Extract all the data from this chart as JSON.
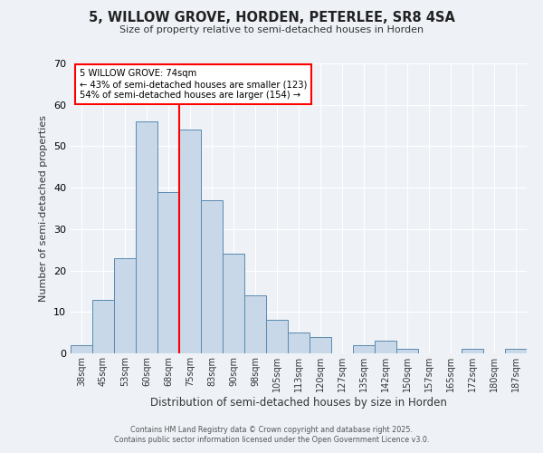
{
  "title": "5, WILLOW GROVE, HORDEN, PETERLEE, SR8 4SA",
  "subtitle": "Size of property relative to semi-detached houses in Horden",
  "xlabel": "Distribution of semi-detached houses by size in Horden",
  "ylabel": "Number of semi-detached properties",
  "bar_labels": [
    "38sqm",
    "45sqm",
    "53sqm",
    "60sqm",
    "68sqm",
    "75sqm",
    "83sqm",
    "90sqm",
    "98sqm",
    "105sqm",
    "113sqm",
    "120sqm",
    "127sqm",
    "135sqm",
    "142sqm",
    "150sqm",
    "157sqm",
    "165sqm",
    "172sqm",
    "180sqm",
    "187sqm"
  ],
  "bar_values": [
    2,
    13,
    23,
    56,
    39,
    54,
    37,
    24,
    14,
    8,
    5,
    4,
    0,
    2,
    3,
    1,
    0,
    0,
    1,
    0,
    1
  ],
  "bar_color": "#c8d8e8",
  "bar_edge_color": "#5a8ab0",
  "vline_index": 5,
  "vline_color": "red",
  "annotation_title": "5 WILLOW GROVE: 74sqm",
  "annotation_line1": "← 43% of semi-detached houses are smaller (123)",
  "annotation_line2": "54% of semi-detached houses are larger (154) →",
  "annotation_box_color": "white",
  "annotation_box_edge": "red",
  "ylim": [
    0,
    70
  ],
  "yticks": [
    0,
    10,
    20,
    30,
    40,
    50,
    60,
    70
  ],
  "bg_color": "#eef2f7",
  "grid_color": "white",
  "footer1": "Contains HM Land Registry data © Crown copyright and database right 2025.",
  "footer2": "Contains public sector information licensed under the Open Government Licence v3.0."
}
